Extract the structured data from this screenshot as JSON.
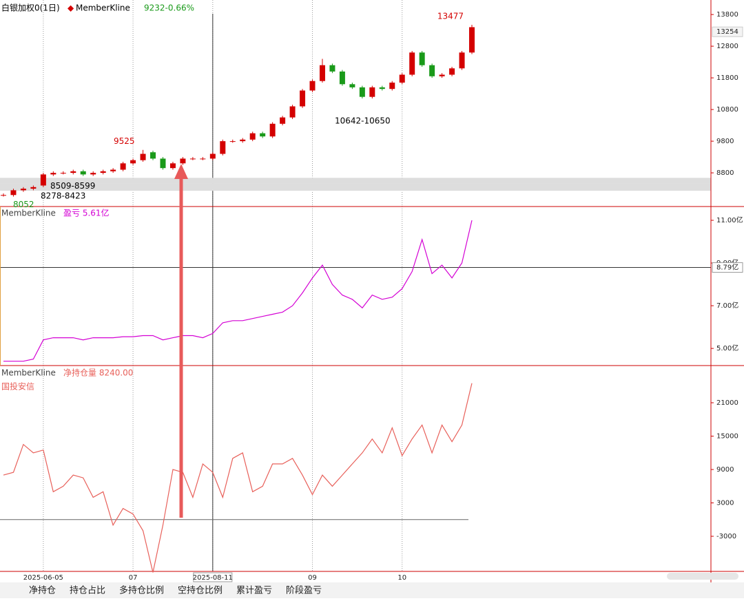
{
  "chart_data": [
    {
      "type": "candlestick",
      "instrument": "白银加权0(1日)",
      "name": "MemberKline",
      "change": "9232-0.66%",
      "ylim": [
        7780,
        14150
      ],
      "yticks": [
        13800,
        12800,
        11800,
        10800,
        9800,
        8800
      ],
      "last_tag": 13254,
      "up_color": "#d40000",
      "down_color": "#1a9a1a",
      "open": [
        8080,
        8100,
        8250,
        8300,
        8400,
        8750,
        8800,
        8800,
        8850,
        8750,
        8800,
        8850,
        8900,
        9100,
        9200,
        9450,
        9250,
        8950,
        9100,
        9250,
        9250,
        9250,
        9400,
        9800,
        9800,
        9850,
        10050,
        9950,
        10350,
        10550,
        10900,
        11400,
        11700,
        12200,
        12000,
        11600,
        11500,
        11200,
        11500,
        11450,
        11650,
        11900,
        12600,
        12200,
        11850,
        11900,
        12100,
        12600
      ],
      "high": [
        8150,
        8300,
        8350,
        8400,
        8800,
        8850,
        8850,
        8900,
        8900,
        8850,
        8900,
        8950,
        9150,
        9250,
        9525,
        9500,
        9300,
        9150,
        9300,
        9300,
        9300,
        9450,
        9850,
        9850,
        9900,
        10100,
        10100,
        10400,
        10600,
        10950,
        11450,
        11750,
        12400,
        12250,
        12050,
        11650,
        11550,
        11550,
        11550,
        11700,
        11950,
        12650,
        12650,
        12250,
        11950,
        12150,
        12650,
        13477
      ],
      "low": [
        8052,
        8050,
        8200,
        8250,
        8350,
        8700,
        8750,
        8750,
        8700,
        8700,
        8750,
        8800,
        8850,
        9050,
        9150,
        9200,
        8900,
        8900,
        9050,
        9200,
        9200,
        9200,
        9350,
        9750,
        9750,
        9800,
        9900,
        9900,
        10300,
        10500,
        10850,
        11350,
        11650,
        11950,
        11550,
        11450,
        11150,
        11150,
        11400,
        11400,
        11600,
        11850,
        12150,
        11800,
        11800,
        11850,
        12050,
        12550
      ],
      "close": [
        8100,
        8250,
        8300,
        8350,
        8750,
        8800,
        8800,
        8850,
        8750,
        8800,
        8850,
        8900,
        9100,
        9200,
        9400,
        9250,
        8950,
        9100,
        9250,
        9250,
        9250,
        9400,
        9800,
        9800,
        9850,
        10050,
        9950,
        10350,
        10550,
        10900,
        11400,
        11700,
        12200,
        12000,
        11600,
        11500,
        11200,
        11500,
        11450,
        11650,
        11900,
        12600,
        12200,
        11850,
        11900,
        12100,
        12600,
        13400
      ],
      "marked_highs": [
        47,
        14
      ],
      "marked_lows": [
        0
      ],
      "zones": [
        {
          "label": "8509-8599",
          "low": 8509,
          "high": 8599
        },
        {
          "label": "8278-8423",
          "low": 8278,
          "high": 8423
        }
      ],
      "zone_note": "10642-10650"
    },
    {
      "type": "line",
      "name": "MemberKline",
      "label": "盈亏 5.61亿",
      "color": "#d400d4",
      "ylim": [
        4.23,
        11.58
      ],
      "yticks": [
        {
          "value": 11,
          "label": "11.00亿"
        },
        {
          "value": 9,
          "label": "9.00亿"
        },
        {
          "value": 7,
          "label": "7.00亿"
        },
        {
          "value": 5,
          "label": "5.00亿"
        }
      ],
      "crosshair": {
        "value": 8.79,
        "label": "8.79亿"
      },
      "values": [
        4.4,
        4.4,
        4.4,
        4.5,
        5.4,
        5.5,
        5.5,
        5.5,
        5.4,
        5.5,
        5.5,
        5.5,
        5.55,
        5.55,
        5.6,
        5.6,
        5.4,
        5.5,
        5.6,
        5.6,
        5.5,
        5.7,
        6.2,
        6.3,
        6.3,
        6.4,
        6.5,
        6.6,
        6.7,
        7.0,
        7.6,
        8.3,
        8.9,
        8.0,
        7.5,
        7.3,
        6.9,
        7.5,
        7.3,
        7.4,
        7.8,
        8.6,
        10.1,
        8.5,
        8.9,
        8.3,
        9.0,
        11.0
      ]
    },
    {
      "type": "line",
      "name": "MemberKline",
      "label": "净持仓量 8240.00",
      "member": "国投安信",
      "color": "#e8605a",
      "ylim": [
        -9310,
        27560
      ],
      "yticks": [
        21000,
        15000,
        9000,
        3000,
        -3000
      ],
      "values": [
        8000,
        8500,
        13500,
        12000,
        12500,
        5000,
        6000,
        8000,
        7500,
        4000,
        5000,
        -1000,
        2000,
        1000,
        -2000,
        -9500,
        -1000,
        9000,
        8500,
        4000,
        10000,
        8500,
        4000,
        11000,
        12000,
        5000,
        6000,
        10000,
        10000,
        11000,
        8000,
        4500,
        8000,
        6000,
        8000,
        10000,
        12000,
        14500,
        12000,
        16500,
        11500,
        14500,
        17000,
        12000,
        17000,
        14000,
        17000,
        24500
      ]
    }
  ],
  "x_axis_labels": [
    {
      "index": 4,
      "label": "2025-06-05"
    },
    {
      "index": 13,
      "label": "07"
    },
    {
      "index": 21,
      "label": "2025-08-11"
    },
    {
      "index": 31,
      "label": "09"
    },
    {
      "index": 40,
      "label": "10"
    }
  ],
  "crosshair_index": 21,
  "tabs": [
    "净持仓",
    "持仓占比",
    "多持仓比例",
    "空持仓比例",
    "累计盈亏",
    "阶段盈亏"
  ]
}
